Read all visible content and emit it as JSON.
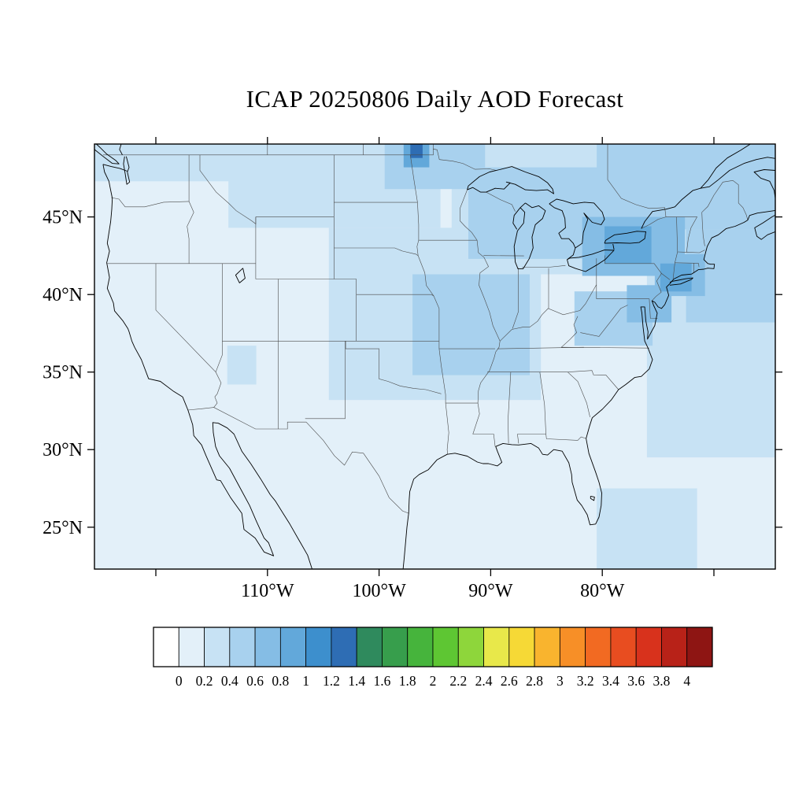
{
  "chart_data": {
    "type": "map-filled-contour",
    "title": "ICAP 20250806 Daily AOD Forecast",
    "variable": "AOD",
    "region": "CONUS",
    "projection": "equirectangular",
    "lon_range": [
      -125.5,
      -64.5
    ],
    "lat_range": [
      22.3,
      49.7
    ],
    "x_ticks": [
      {
        "lon": -110,
        "label": "110°W"
      },
      {
        "lon": -100,
        "label": "100°W"
      },
      {
        "lon": -90,
        "label": "90°W"
      },
      {
        "lon": -80,
        "label": "80°W"
      }
    ],
    "x_minor_tick_lons": [
      -120,
      -70
    ],
    "y_ticks": [
      {
        "lat": 45,
        "label": "45°N"
      },
      {
        "lat": 40,
        "label": "40°N"
      },
      {
        "lat": 35,
        "label": "35°N"
      },
      {
        "lat": 30,
        "label": "30°N"
      },
      {
        "lat": 25,
        "label": "25°N"
      }
    ],
    "colorbar": {
      "levels": [
        0,
        0.2,
        0.4,
        0.6,
        0.8,
        1,
        1.2,
        1.4,
        1.6,
        1.8,
        2,
        2.2,
        2.4,
        2.6,
        2.8,
        3,
        3.2,
        3.4,
        3.6,
        3.8,
        4
      ],
      "labels": [
        "0",
        "0.2",
        "0.4",
        "0.6",
        "0.8",
        "1",
        "1.2",
        "1.4",
        "1.6",
        "1.8",
        "2",
        "2.2",
        "2.4",
        "2.6",
        "2.8",
        "3",
        "3.2",
        "3.4",
        "3.6",
        "3.8",
        "4"
      ],
      "colors": [
        "#ffffff",
        "#e3f0f9",
        "#c7e2f4",
        "#a8d1ee",
        "#85bde5",
        "#62a8da",
        "#3d8fcd",
        "#2e6db4",
        "#2f8a5d",
        "#379e4c",
        "#46b43c",
        "#5ec633",
        "#8ed63b",
        "#e8e84a",
        "#f6d936",
        "#f9b42e",
        "#f78f27",
        "#f26a22",
        "#e84d20",
        "#d8321c",
        "#b82218",
        "#8e1513"
      ]
    },
    "aod_field": {
      "background_value": 0.12,
      "cells": [
        {
          "lon": [
            -125.5,
            -111.5
          ],
          "lat": [
            47.3,
            49.7
          ],
          "value": 0.3
        },
        {
          "lon": [
            -113.5,
            -94.5
          ],
          "lat": [
            44.3,
            49.7
          ],
          "value": 0.3
        },
        {
          "lon": [
            -93.5,
            -70.5
          ],
          "lat": [
            41.3,
            49.7
          ],
          "value": 0.3
        },
        {
          "lon": [
            -104.5,
            -85.5
          ],
          "lat": [
            33.2,
            44.3
          ],
          "value": 0.3
        },
        {
          "lon": [
            -76.0,
            -64.5
          ],
          "lat": [
            29.5,
            45.5
          ],
          "value": 0.3
        },
        {
          "lon": [
            -80.5,
            -71.5
          ],
          "lat": [
            22.3,
            27.5
          ],
          "value": 0.3
        },
        {
          "lon": [
            -113.6,
            -111.0
          ],
          "lat": [
            34.2,
            36.7
          ],
          "value": 0.3
        },
        {
          "lon": [
            -99.5,
            -90.5
          ],
          "lat": [
            46.8,
            49.7
          ],
          "value": 0.5
        },
        {
          "lon": [
            -92.0,
            -73.5
          ],
          "lat": [
            42.3,
            48.2
          ],
          "value": 0.5
        },
        {
          "lon": [
            -97.0,
            -86.5
          ],
          "lat": [
            34.8,
            41.3
          ],
          "value": 0.45
        },
        {
          "lon": [
            -82.5,
            -75.5
          ],
          "lat": [
            36.7,
            40.2
          ],
          "value": 0.45
        },
        {
          "lon": [
            -80.5,
            -64.5
          ],
          "lat": [
            44.2,
            49.7
          ],
          "value": 0.5
        },
        {
          "lon": [
            -72.5,
            -64.5
          ],
          "lat": [
            38.2,
            44.2
          ],
          "value": 0.5
        },
        {
          "lon": [
            -81.8,
            -72.6
          ],
          "lat": [
            41.2,
            45.0
          ],
          "value": 0.7
        },
        {
          "lon": [
            -77.8,
            -73.8
          ],
          "lat": [
            38.2,
            40.6
          ],
          "value": 0.65
        },
        {
          "lon": [
            -75.3,
            -70.8
          ],
          "lat": [
            39.9,
            42.6
          ],
          "value": 0.7
        },
        {
          "lon": [
            -74.8,
            -72.0
          ],
          "lat": [
            40.2,
            42.0
          ],
          "value": 0.9
        },
        {
          "lon": [
            -79.8,
            -75.6
          ],
          "lat": [
            42.0,
            44.4
          ],
          "value": 0.9
        },
        {
          "lon": [
            -97.8,
            -95.5
          ],
          "lat": [
            48.2,
            49.7
          ],
          "value": 0.9
        },
        {
          "lon": [
            -97.2,
            -96.1
          ],
          "lat": [
            48.8,
            49.7
          ],
          "value": 1.3
        }
      ]
    }
  }
}
